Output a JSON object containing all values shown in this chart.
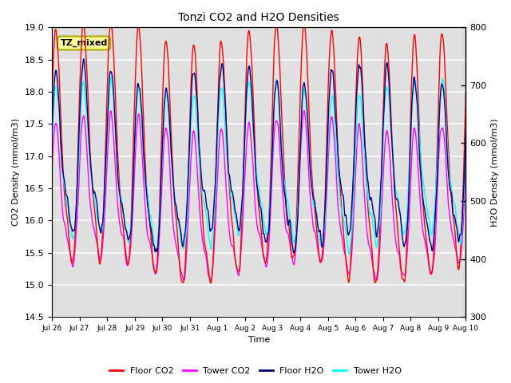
{
  "title": "Tonzi CO2 and H2O Densities",
  "xlabel": "Time",
  "ylabel_left": "CO2 Density (mmol/m3)",
  "ylabel_right": "H2O Density (mmol/m3)",
  "annotation": "TZ_mixed",
  "ylim_left": [
    14.5,
    19.0
  ],
  "ylim_right": [
    300,
    800
  ],
  "xtick_labels": [
    "Jul 26",
    "Jul 27",
    "Jul 28",
    "Jul 29",
    "Jul 30",
    "Jul 31",
    "Aug 1",
    "Aug 2",
    "Aug 3",
    "Aug 4",
    "Aug 5",
    "Aug 6",
    "Aug 7",
    "Aug 8",
    "Aug 9",
    "Aug 10"
  ],
  "colors": {
    "floor_co2": "#FF0000",
    "tower_co2": "#FF00FF",
    "floor_h2o": "#00008B",
    "tower_h2o": "#00FFFF"
  },
  "legend_labels": [
    "Floor CO2",
    "Tower CO2",
    "Floor H2O",
    "Tower H2O"
  ],
  "bg_color": "#E0E0E0",
  "annotation_bg": "#FFFF99",
  "annotation_border": "#AAAA00",
  "grid_color": "#FFFFFF",
  "n_days": 15,
  "points_per_day": 96
}
